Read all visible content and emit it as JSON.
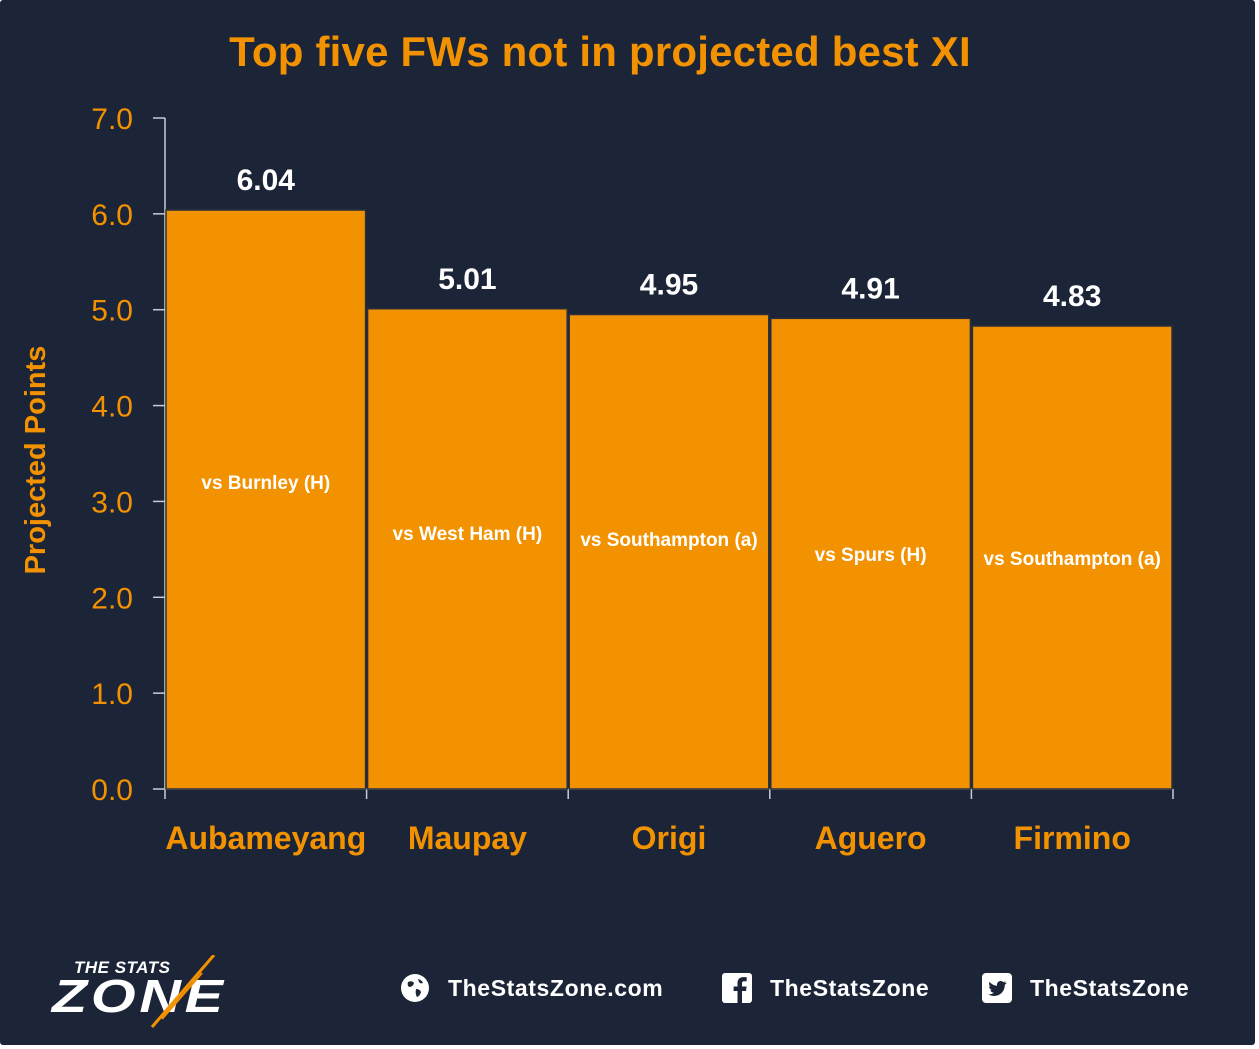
{
  "chart_data": {
    "type": "bar",
    "title": "Top five FWs not in projected best XI",
    "ylabel": "Projected Points",
    "xlabel": "",
    "categories": [
      "Aubameyang",
      "Maupay",
      "Origi",
      "Aguero",
      "Firmino"
    ],
    "values": [
      6.04,
      5.01,
      4.95,
      4.91,
      4.83
    ],
    "value_labels": [
      "6.04",
      "5.01",
      "4.95",
      "4.91",
      "4.83"
    ],
    "bar_labels": [
      "vs Burnley (H)",
      "vs West Ham (H)",
      "vs Southampton (a)",
      "vs Spurs (H)",
      "vs Southampton (a)"
    ],
    "ylim": [
      0,
      7
    ],
    "yticks": [
      "0.0",
      "1.0",
      "2.0",
      "3.0",
      "4.0",
      "5.0",
      "6.0",
      "7.0"
    ],
    "grid": false,
    "colors": {
      "bar": "#f39200",
      "text_accent": "#f39200",
      "value_text": "#ffffff",
      "background": "#1c2437"
    }
  },
  "footer": {
    "logo_top": "THE STATS",
    "logo_main": "ZONE",
    "website": "TheStatsZone.com",
    "facebook": "TheStatsZone",
    "twitter": "TheStatsZone",
    "icons": [
      "globe-icon",
      "facebook-icon",
      "twitter-icon"
    ]
  }
}
